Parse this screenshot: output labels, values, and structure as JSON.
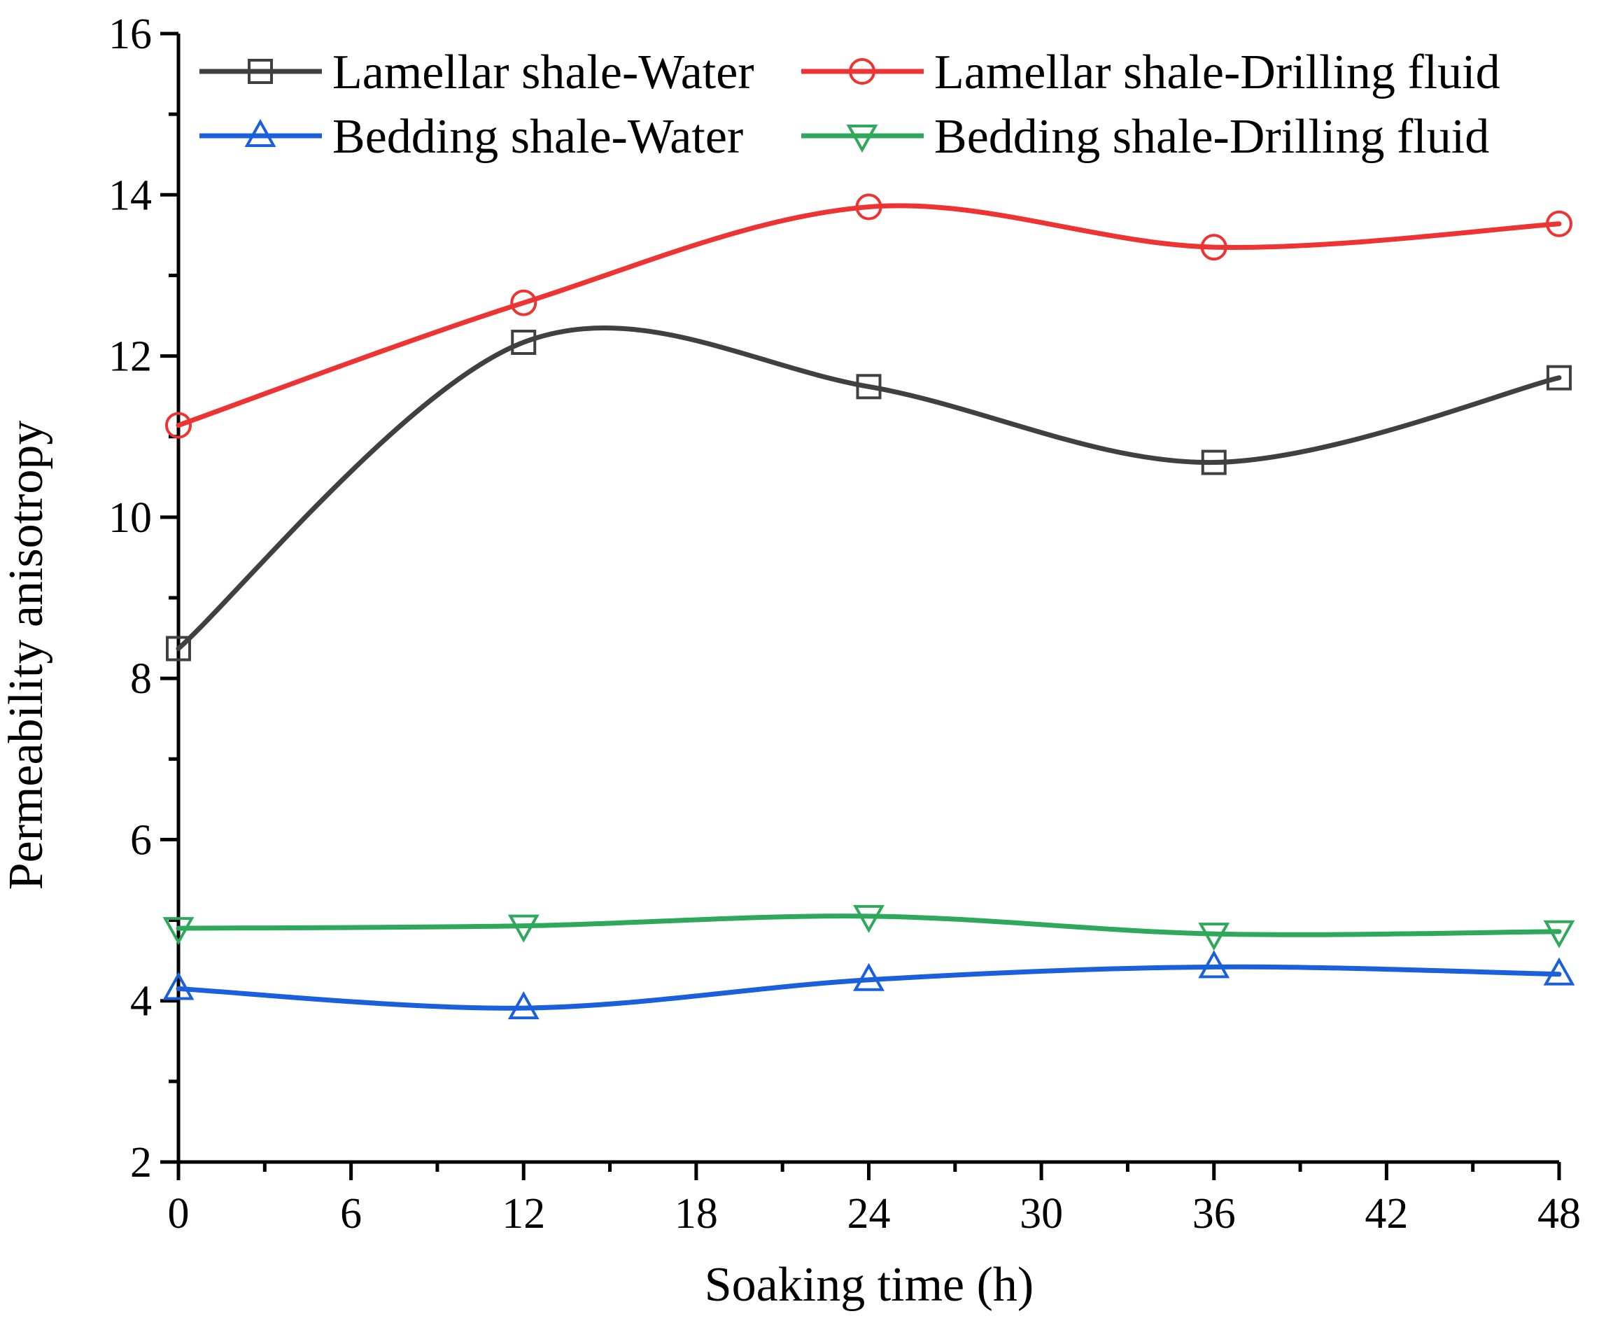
{
  "chart_data": {
    "type": "line",
    "title": "",
    "xlabel": "Soaking time (h)",
    "ylabel": "Permeability anisotropy",
    "xlim": [
      0,
      48
    ],
    "ylim": [
      2,
      16
    ],
    "x_ticks": [
      0,
      6,
      12,
      18,
      24,
      30,
      36,
      42,
      48
    ],
    "x_tick_labels": [
      "0",
      "6",
      "12",
      "18",
      "24",
      "30",
      "36",
      "42",
      "48"
    ],
    "y_ticks": [
      2,
      4,
      6,
      8,
      10,
      12,
      14,
      16
    ],
    "y_tick_labels": [
      "2",
      "4",
      "6",
      "8",
      "10",
      "12",
      "14",
      "16"
    ],
    "grid": false,
    "legend_position": "top",
    "x": [
      0,
      12,
      24,
      36,
      48
    ],
    "series": [
      {
        "name": "Lamellar shale-Water",
        "marker": "square",
        "color": "#404040",
        "values": [
          8.37,
          12.17,
          11.62,
          10.68,
          11.73
        ]
      },
      {
        "name": "Lamellar shale-Drilling fluid",
        "marker": "circle",
        "color": "#ee3333",
        "values": [
          11.14,
          12.66,
          13.85,
          13.35,
          13.64
        ]
      },
      {
        "name": "Bedding shale-Water",
        "marker": "triangle-up",
        "color": "#1a5fdb",
        "values": [
          4.15,
          3.91,
          4.26,
          4.42,
          4.33
        ]
      },
      {
        "name": "Bedding shale-Drilling fluid",
        "marker": "triangle-down",
        "color": "#2ea85a",
        "values": [
          4.9,
          4.93,
          5.05,
          4.83,
          4.86
        ]
      }
    ]
  }
}
